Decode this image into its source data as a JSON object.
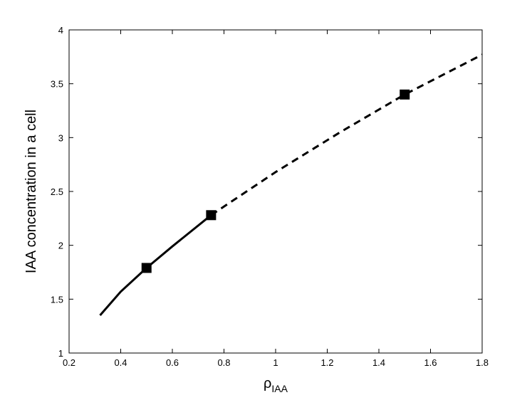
{
  "chart_data": {
    "type": "line",
    "x_label": "ρ",
    "x_label_subscript": "IAA",
    "y_label": "IAA concentration in a cell",
    "xlim": [
      0.2,
      1.8
    ],
    "xticks": [
      0.2,
      0.4,
      0.6,
      0.8,
      1,
      1.2,
      1.4,
      1.6,
      1.8
    ],
    "ylim": [
      1,
      4
    ],
    "yticks": [
      1,
      1.5,
      2,
      2.5,
      3,
      3.5,
      4
    ],
    "series": [
      {
        "color": "#000000",
        "dashed": false,
        "x": [
          0.32,
          0.4,
          0.5,
          0.6,
          0.75
        ],
        "values": [
          1.35,
          1.57,
          1.79,
          1.99,
          2.28
        ]
      },
      {
        "color": "#000000",
        "dashed": true,
        "x": [
          0.75,
          1.0,
          1.25,
          1.5,
          1.8
        ],
        "values": [
          2.28,
          2.68,
          3.05,
          3.4,
          3.77
        ]
      },
      {
        "color": "#000000",
        "marker": "square",
        "x": [
          0.5,
          0.75,
          1.5
        ],
        "values": [
          1.79,
          2.28,
          3.4
        ]
      }
    ]
  }
}
